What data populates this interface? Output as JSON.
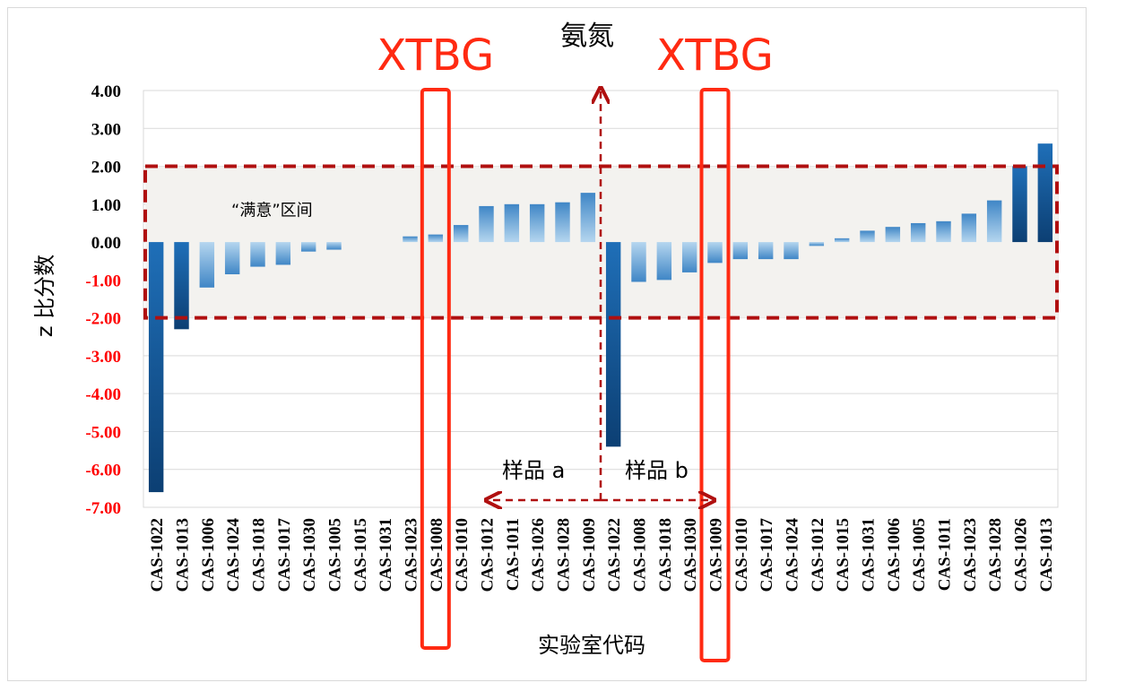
{
  "chart_data": {
    "type": "bar",
    "title": "氨氮",
    "xlabel": "实验室代码",
    "ylabel": "z 比分数",
    "ylim": [
      -7.0,
      4.0
    ],
    "yticks": [
      "4.00",
      "3.00",
      "2.00",
      "1.00",
      "0.00",
      "-1.00",
      "-2.00",
      "-3.00",
      "-4.00",
      "-5.00",
      "-6.00",
      "-7.00"
    ],
    "yticks_red": [
      "-1.00",
      "-2.00",
      "-3.00",
      "-4.00",
      "-5.00",
      "-6.00",
      "-7.00"
    ],
    "grid": true,
    "satisfactory_zone": {
      "label": "“满意”区间",
      "range": [
        -2.0,
        2.0
      ]
    },
    "annotations": {
      "highlight_label_left": "XTBG",
      "highlight_label_right": "XTBG",
      "sample_a": "样品 a",
      "sample_b": "样品 b"
    },
    "highlight_categories": [
      "CAS-1008",
      "CAS-1009"
    ],
    "categories": [
      "CAS-1022",
      "CAS-1013",
      "CAS-1006",
      "CAS-1024",
      "CAS-1018",
      "CAS-1017",
      "CAS-1030",
      "CAS-1005",
      "CAS-1015",
      "CAS-1031",
      "CAS-1023",
      "CAS-1008",
      "CAS-1010",
      "CAS-1012",
      "CAS-1011",
      "CAS-1026",
      "CAS-1028",
      "CAS-1009",
      "CAS-1022",
      "CAS-1008",
      "CAS-1018",
      "CAS-1030",
      "CAS-1009",
      "CAS-1010",
      "CAS-1017",
      "CAS-1024",
      "CAS-1012",
      "CAS-1015",
      "CAS-1031",
      "CAS-1006",
      "CAS-1005",
      "CAS-1011",
      "CAS-1023",
      "CAS-1028",
      "CAS-1026",
      "CAS-1013"
    ],
    "values": [
      -6.6,
      -2.3,
      -1.2,
      -0.85,
      -0.65,
      -0.6,
      -0.25,
      -0.2,
      0.0,
      0.0,
      0.15,
      0.2,
      0.45,
      0.95,
      1.0,
      1.0,
      1.05,
      1.3,
      -5.4,
      -1.05,
      -1.0,
      -0.8,
      -0.55,
      -0.45,
      -0.45,
      -0.45,
      -0.1,
      0.1,
      0.3,
      0.4,
      0.5,
      0.55,
      0.75,
      1.1,
      2.0,
      2.6
    ],
    "colors": {
      "bar_light": "#8fc0e6",
      "bar_mid": "#3f86c6",
      "bar_dark": "#0c3f73",
      "bar_top": "#1f77cc",
      "zone_fill": "#f3f2ef",
      "zone_border": "#b01010",
      "highlight": "#ff2a12",
      "grid": "#d9d9d9",
      "tick_red": "#ff0000"
    }
  }
}
